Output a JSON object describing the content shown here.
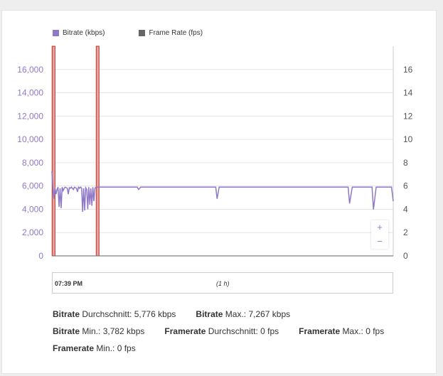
{
  "legend": [
    {
      "label": "Bitrate (kbps)",
      "color": "#8f78c7"
    },
    {
      "label": "Frame Rate (fps)",
      "color": "#666666"
    }
  ],
  "chart_data": {
    "type": "line",
    "x_range_label": "(1 h)",
    "x_start_label": "07:39 PM",
    "y_left": {
      "ticks": [
        "16,000",
        "14,000",
        "12,000",
        "10,000",
        "8,000",
        "6,000",
        "4,000",
        "2,000",
        "0"
      ],
      "ylim": [
        0,
        18000
      ]
    },
    "y_right": {
      "ticks": [
        "16",
        "14",
        "12",
        "10",
        "8",
        "6",
        "4",
        "2",
        "0"
      ],
      "ylim": [
        0,
        18
      ]
    },
    "series": [
      {
        "name": "Bitrate (kbps)",
        "color": "#8f78c7",
        "x": [
          0,
          0.3,
          0.6,
          0.9,
          1.2,
          1.5,
          1.8,
          2.1,
          2.4,
          2.7,
          3.0,
          3.3,
          3.6,
          3.9,
          4.2,
          4.5,
          4.8,
          5.1,
          5.4,
          5.7,
          6.0,
          6.3,
          6.6,
          6.9,
          7.2,
          7.5,
          7.8,
          8.1,
          8.4,
          8.7,
          9.0,
          9.3,
          9.6,
          9.9,
          10.2,
          10.5,
          10.8,
          11.1,
          11.4,
          11.7,
          12.0,
          12.3,
          12.6,
          12.9,
          13.2,
          13.5,
          13.8,
          14.1,
          14.4,
          14.7,
          15.0,
          15.3,
          15.6,
          15.9,
          16.2,
          16.5,
          16.8,
          17.1,
          17.4,
          17.7,
          18.0,
          20,
          24,
          25,
          25.4,
          26,
          30,
          40,
          45,
          48,
          48.4,
          49,
          55,
          60,
          65,
          70,
          75,
          80,
          85,
          86.8,
          87.2,
          88,
          92,
          93.8,
          94.2,
          95,
          99.5,
          100
        ],
        "values": [
          7267,
          5800,
          4900,
          5850,
          5300,
          5700,
          5900,
          4200,
          5800,
          4100,
          5900,
          5600,
          5800,
          5900,
          5850,
          5800,
          5300,
          5850,
          5800,
          5900,
          5800,
          5700,
          5900,
          5850,
          5800,
          5500,
          5900,
          5800,
          5900,
          5800,
          3782,
          5800,
          3900,
          5850,
          5700,
          4000,
          5900,
          4400,
          5800,
          4300,
          5900,
          4700,
          5800,
          5900,
          5900,
          5900,
          5900,
          5900,
          5900,
          5900,
          5900,
          5900,
          5900,
          5900,
          5900,
          5900,
          5900,
          5900,
          5900,
          5900,
          5900,
          5900,
          5900,
          5900,
          5700,
          5900,
          5900,
          5900,
          5900,
          5900,
          4900,
          5900,
          5900,
          5900,
          5900,
          5900,
          5900,
          5900,
          5900,
          5900,
          4500,
          5900,
          5900,
          5900,
          3990,
          5900,
          5900,
          4700
        ]
      },
      {
        "name": "Frame Rate (fps)",
        "color": "#666666",
        "x": [
          0,
          100
        ],
        "values": [
          0,
          0
        ]
      }
    ],
    "markers_percent": [
      0.5,
      13.4
    ]
  },
  "zoom": {
    "in": "+",
    "out": "−"
  },
  "stats": [
    [
      {
        "name": "Bitrate",
        "label": " Durchschnitt: 5,776 kbps"
      },
      {
        "name": "Bitrate",
        "label": " Max.: 7,267 kbps"
      }
    ],
    [
      {
        "name": "Bitrate",
        "label": " Min.: 3,782 kbps"
      },
      {
        "name": "Framerate",
        "label": " Durchschnitt: 0 fps"
      },
      {
        "name": "Framerate",
        "label": " Max.: 0 fps"
      }
    ],
    [
      {
        "name": "Framerate",
        "label": " Min.: 0 fps"
      }
    ]
  ]
}
